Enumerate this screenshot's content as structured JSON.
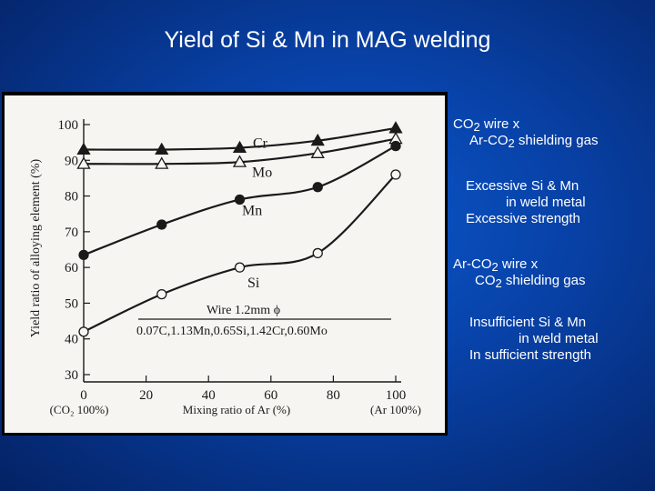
{
  "slide": {
    "title": "Yield of Si & Mn in MAG welding"
  },
  "notes": {
    "case1_title_a_prefix": "CO",
    "case1_title_a_sub": "2",
    "case1_title_a_suffix": " wire  x",
    "case1_title_b_prefix": "Ar-CO",
    "case1_title_b_sub": "2",
    "case1_title_b_suffix": " shielding gas",
    "case1_result_1": "Excessive Si & Mn",
    "case1_result_2": "in weld metal",
    "case1_result_3": "Excessive strength",
    "case2_title_a_prefix": "Ar-CO",
    "case2_title_a_sub": "2",
    "case2_title_a_suffix": " wire  x",
    "case2_title_b_prefix": "CO",
    "case2_title_b_sub": "2",
    "case2_title_b_suffix": " shielding gas",
    "case2_result_1": "Insufficient Si & Mn",
    "case2_result_2": "in weld metal",
    "case2_result_3": "In sufficient strength"
  },
  "chart_data": {
    "type": "line",
    "xlabel": "Mixing ratio of Ar (%)",
    "ylabel": "Yield ratio of alloying element  (%)",
    "xlim": [
      0,
      100
    ],
    "ylim": [
      30,
      100
    ],
    "x_ticks": [
      0,
      20,
      40,
      60,
      80,
      100
    ],
    "y_ticks": [
      30,
      40,
      50,
      60,
      70,
      80,
      90,
      100
    ],
    "x_end_label_left": "(CO₂ 100%)",
    "x_end_label_right": "(Ar 100%)",
    "grid": false,
    "annotation_line1": "Wire 1.2mm ϕ",
    "annotation_line2": "0.07C,1.13Mn,0.65Si,1.42Cr,0.60Mo",
    "series": [
      {
        "name": "Cr",
        "marker": "filled-triangle",
        "x": [
          0,
          25,
          50,
          75,
          100
        ],
        "y": [
          93,
          93,
          93.5,
          95.5,
          99
        ]
      },
      {
        "name": "Mo",
        "marker": "open-triangle",
        "x": [
          0,
          25,
          50,
          75,
          100
        ],
        "y": [
          89,
          89,
          89.5,
          92,
          96
        ]
      },
      {
        "name": "Mn",
        "marker": "filled-circle",
        "x": [
          0,
          25,
          50,
          75,
          100
        ],
        "y": [
          63.5,
          72,
          79,
          82.5,
          94
        ]
      },
      {
        "name": "Si",
        "marker": "open-circle",
        "x": [
          0,
          25,
          50,
          75,
          100
        ],
        "y": [
          42,
          52.5,
          60,
          64,
          86
        ]
      }
    ]
  }
}
